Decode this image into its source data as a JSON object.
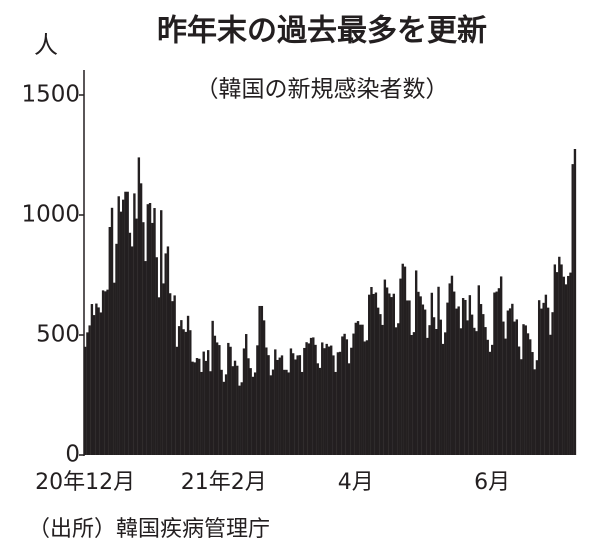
{
  "chart_data": {
    "type": "bar",
    "title": "昨年末の過去最多を更新",
    "subtitle": "（韓国の新規感染者数）",
    "y_label": "人",
    "source": "（出所）韓国疾病管理庁",
    "color": "#231f20",
    "ylim": [
      0,
      1500
    ],
    "yticks": [
      0,
      500,
      1000,
      1500
    ],
    "categories": [
      "20年12月",
      null,
      null,
      null,
      null,
      null,
      null,
      null,
      null,
      null,
      null,
      null,
      null,
      null,
      null,
      null,
      null,
      null,
      null,
      null,
      null,
      null,
      null,
      null,
      null,
      null,
      null,
      null,
      null,
      null,
      null,
      null,
      null,
      null,
      null,
      null,
      null,
      null,
      null,
      null,
      null,
      null,
      null,
      null,
      null,
      null,
      null,
      null,
      null,
      null,
      null,
      null,
      null,
      null,
      null,
      null,
      null,
      null,
      null,
      null,
      null,
      null,
      "21年2月",
      null,
      null,
      null,
      null,
      null,
      null,
      null,
      null,
      null,
      null,
      null,
      null,
      null,
      null,
      null,
      null,
      null,
      null,
      null,
      null,
      null,
      null,
      null,
      null,
      null,
      null,
      null,
      null,
      null,
      null,
      null,
      null,
      null,
      null,
      null,
      null,
      null,
      null,
      null,
      null,
      null,
      null,
      null,
      null,
      null,
      null,
      null,
      null,
      null,
      null,
      null,
      null,
      null,
      null,
      null,
      null,
      null,
      null,
      "4月",
      null,
      null,
      null,
      null,
      null,
      null,
      null,
      null,
      null,
      null,
      null,
      null,
      null,
      null,
      null,
      null,
      null,
      null,
      null,
      null,
      null,
      null,
      null,
      null,
      null,
      null,
      null,
      null,
      null,
      null,
      null,
      null,
      null,
      null,
      null,
      null,
      null,
      null,
      null,
      null,
      null,
      null,
      null,
      null,
      null,
      null,
      null,
      null,
      null,
      null,
      null,
      null,
      null,
      null,
      null,
      null,
      null,
      null,
      null,
      null,
      "6月",
      null,
      null,
      null,
      null,
      null,
      null,
      null,
      null,
      null,
      null,
      null,
      null,
      null,
      null,
      null,
      null,
      null,
      null,
      null,
      null,
      null,
      null,
      null,
      null,
      null,
      null,
      null,
      null,
      null,
      null,
      null,
      null,
      null,
      null,
      null,
      null,
      null
    ],
    "values": [
      451,
      511,
      540,
      629,
      583,
      631,
      615,
      594,
      686,
      682,
      689,
      950,
      1030,
      718,
      880,
      1078,
      1014,
      1064,
      1097,
      1097,
      926,
      869,
      1090,
      985,
      1240,
      1132,
      970,
      808,
      1045,
      1050,
      967,
      1029,
      824,
      657,
      1020,
      715,
      840,
      869,
      674,
      641,
      665,
      451,
      537,
      562,
      524,
      513,
      580,
      520,
      389,
      386,
      404,
      401,
      346,
      431,
      392,
      437,
      349,
      559,
      497,
      469,
      458,
      355,
      305,
      336,
      467,
      451,
      370,
      393,
      372,
      289,
      303,
      444,
      504,
      403,
      362,
      326,
      344,
      457,
      621,
      621,
      561,
      448,
      416,
      332,
      356,
      440,
      396,
      406,
      415,
      355,
      355,
      344,
      444,
      424,
      398,
      415,
      416,
      346,
      446,
      470,
      465,
      488,
      490,
      459,
      382,
      363,
      469,
      445,
      463,
      452,
      456,
      415,
      346,
      428,
      430,
      494,
      505,
      482,
      382,
      447,
      506,
      551,
      558,
      543,
      543,
      473,
      478,
      668,
      700,
      671,
      677,
      614,
      587,
      542,
      731,
      698,
      673,
      658,
      672,
      532,
      549,
      735,
      797,
      785,
      644,
      644,
      500,
      512,
      769,
      680,
      661,
      627,
      606,
      488,
      541,
      676,
      574,
      525,
      701,
      564,
      463,
      511,
      635,
      715,
      747,
      681,
      610,
      619,
      528,
      654,
      646,
      561,
      666,
      585,
      530,
      516,
      707,
      629,
      587,
      533,
      480,
      430,
      459,
      677,
      681,
      695,
      744,
      556,
      485,
      602,
      611,
      630,
      556,
      565,
      452,
      399,
      545,
      540,
      507,
      482,
      429,
      357,
      395,
      645,
      610,
      634,
      668,
      614,
      501,
      595,
      794,
      762,
      826,
      794,
      743,
      711,
      746,
      760,
      1212,
      1275
    ]
  }
}
